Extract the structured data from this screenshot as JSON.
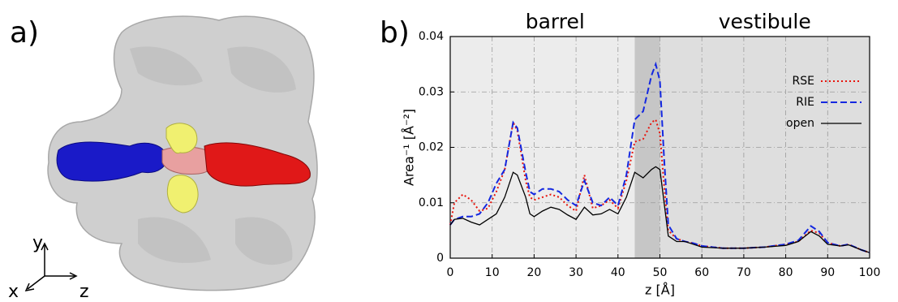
{
  "figure": {
    "label_a": "a)",
    "label_b": "b)",
    "axis_x": "x",
    "axis_y": "y",
    "axis_z": "z"
  },
  "chart_data": {
    "type": "line",
    "annotations": [
      "barrel",
      "vestibule"
    ],
    "xlabel": "z [Å]",
    "ylabel": "Area⁻¹ [Å⁻²]",
    "xlim": [
      0,
      100
    ],
    "xticks": [
      0,
      10,
      20,
      30,
      40,
      50,
      60,
      70,
      80,
      90,
      100
    ],
    "ylim": [
      0,
      0.04
    ],
    "yticks": [
      0,
      0.01,
      0.02,
      0.03,
      0.04
    ],
    "grid": true,
    "legend": "upper right",
    "regions": [
      {
        "xlim": [
          0,
          44
        ],
        "color": "#ececec"
      },
      {
        "xlim": [
          50,
          100
        ],
        "color": "#dedede"
      },
      {
        "xlim": [
          44,
          50
        ],
        "color": "#c6c6c6"
      }
    ],
    "x": [
      0,
      1,
      3,
      5,
      7,
      9,
      11,
      13,
      15,
      16,
      18,
      19,
      20,
      22,
      24,
      26,
      28,
      30,
      32,
      34,
      36,
      38,
      40,
      42,
      44,
      46,
      48,
      49,
      50,
      51,
      52,
      54,
      56,
      58,
      60,
      65,
      70,
      75,
      80,
      83,
      86,
      88,
      90,
      93,
      95,
      98,
      100
    ],
    "series": [
      {
        "name": "RSE",
        "color": "#e8140c",
        "style": "dotted",
        "values": [
          0.006,
          0.01,
          0.0115,
          0.0105,
          0.0085,
          0.009,
          0.012,
          0.016,
          0.0245,
          0.023,
          0.014,
          0.011,
          0.0105,
          0.011,
          0.0115,
          0.011,
          0.0095,
          0.0085,
          0.015,
          0.009,
          0.0095,
          0.0105,
          0.009,
          0.014,
          0.021,
          0.0215,
          0.0245,
          0.025,
          0.0225,
          0.013,
          0.005,
          0.0035,
          0.003,
          0.0027,
          0.0022,
          0.0018,
          0.0018,
          0.002,
          0.0025,
          0.003,
          0.005,
          0.0045,
          0.0028,
          0.0022,
          0.0025,
          0.0015,
          0.001
        ]
      },
      {
        "name": "RIE",
        "color": "#1428e0",
        "style": "dashed",
        "values": [
          0.006,
          0.007,
          0.0075,
          0.0075,
          0.008,
          0.01,
          0.0135,
          0.016,
          0.0245,
          0.0235,
          0.0155,
          0.012,
          0.0115,
          0.0125,
          0.0125,
          0.012,
          0.0105,
          0.0095,
          0.014,
          0.01,
          0.0095,
          0.011,
          0.0095,
          0.015,
          0.025,
          0.0265,
          0.033,
          0.035,
          0.032,
          0.018,
          0.006,
          0.0035,
          0.003,
          0.0027,
          0.0022,
          0.0018,
          0.0018,
          0.002,
          0.0025,
          0.0032,
          0.0058,
          0.0048,
          0.0028,
          0.0022,
          0.0025,
          0.0015,
          0.001
        ]
      },
      {
        "name": "open",
        "color": "#000000",
        "style": "solid",
        "values": [
          0.006,
          0.007,
          0.0072,
          0.0065,
          0.006,
          0.007,
          0.008,
          0.011,
          0.0155,
          0.015,
          0.011,
          0.008,
          0.0075,
          0.0085,
          0.0092,
          0.0088,
          0.0078,
          0.007,
          0.0092,
          0.0078,
          0.008,
          0.0088,
          0.008,
          0.011,
          0.0155,
          0.0145,
          0.016,
          0.0165,
          0.016,
          0.01,
          0.004,
          0.003,
          0.003,
          0.0025,
          0.002,
          0.0018,
          0.0018,
          0.002,
          0.0023,
          0.003,
          0.0048,
          0.004,
          0.0025,
          0.0022,
          0.0024,
          0.0015,
          0.001
        ]
      }
    ]
  }
}
